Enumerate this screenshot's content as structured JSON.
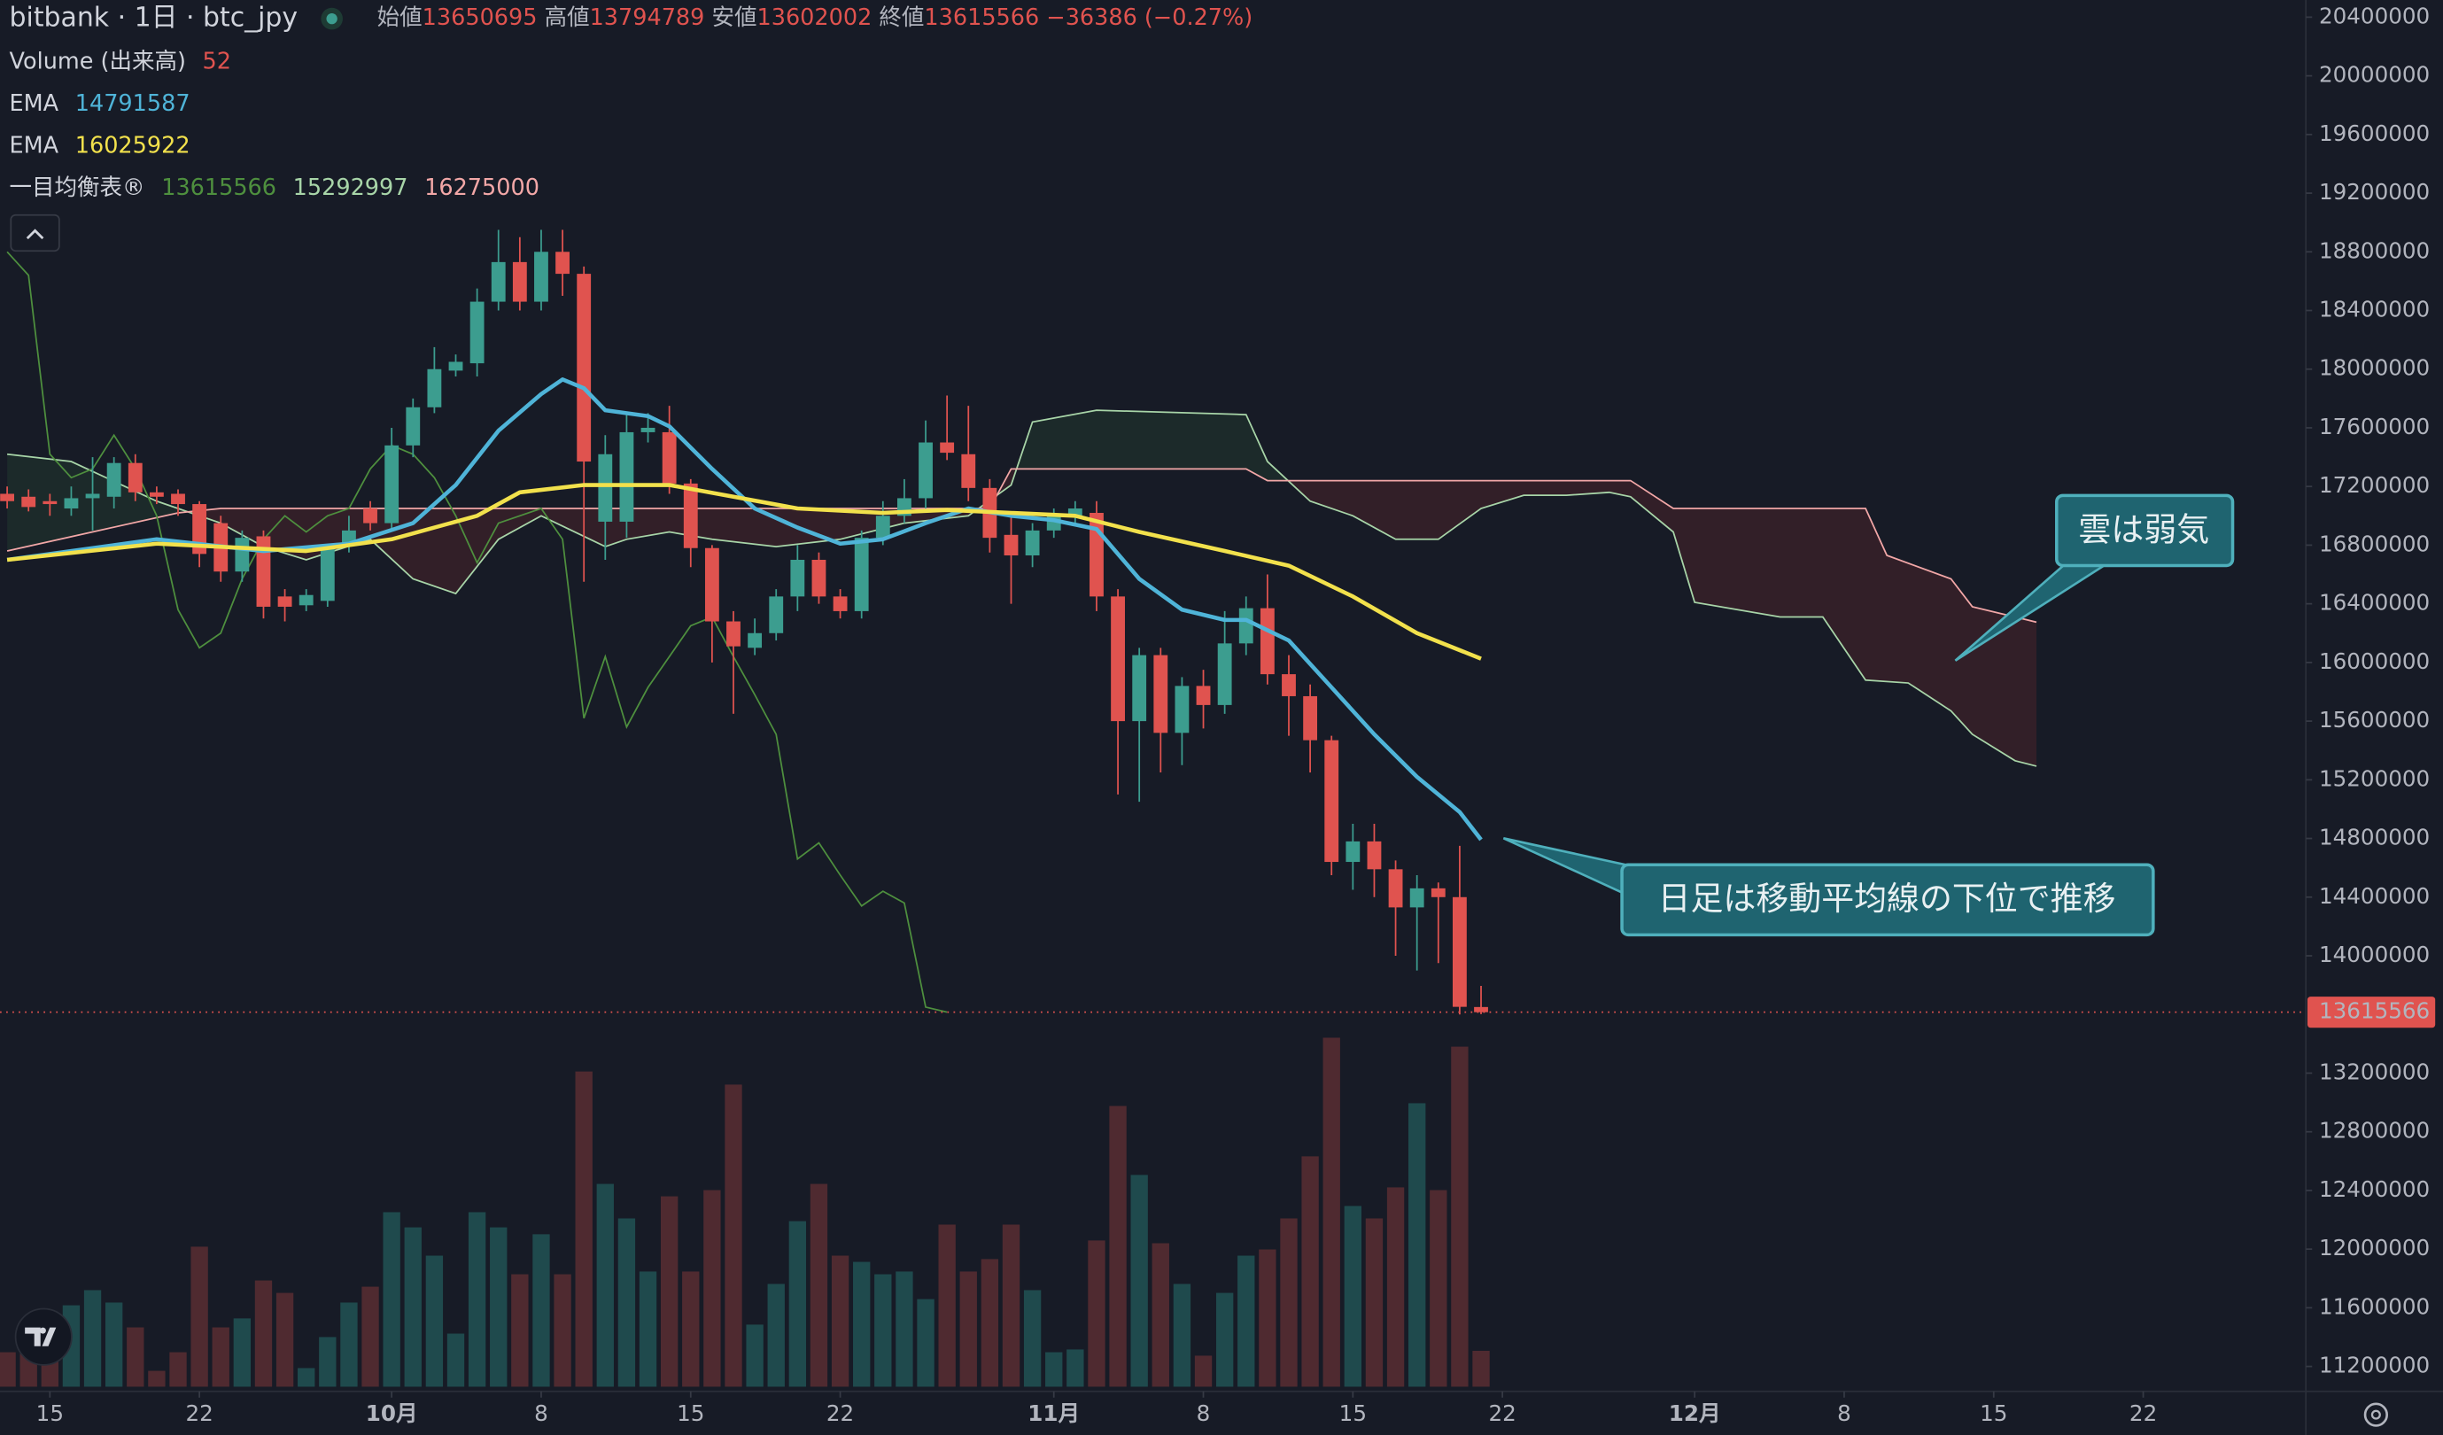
{
  "chart_data": {
    "type": "candlestick",
    "title": "bitbank · 1日 · btc_jpy",
    "ohlc_labels": [
      "始値",
      "高値",
      "安値",
      "終値"
    ],
    "change_label": "−36386 (−0.27%)",
    "up_color": "#3c9d8f",
    "down_color": "#e0534f",
    "x": [
      "09-13",
      "09-14",
      "09-15",
      "09-16",
      "09-17",
      "09-18",
      "09-19",
      "09-20",
      "09-21",
      "09-22",
      "09-23",
      "09-24",
      "09-25",
      "09-26",
      "09-27",
      "09-28",
      "09-29",
      "09-30",
      "10-01",
      "10-02",
      "10-03",
      "10-04",
      "10-05",
      "10-06",
      "10-07",
      "10-08",
      "10-09",
      "10-10",
      "10-11",
      "10-12",
      "10-13",
      "10-14",
      "10-15",
      "10-16",
      "10-17",
      "10-18",
      "10-19",
      "10-20",
      "10-21",
      "10-22",
      "10-23",
      "10-24",
      "10-25",
      "10-26",
      "10-27",
      "10-28",
      "10-29",
      "10-30",
      "10-31",
      "11-01",
      "11-02",
      "11-03",
      "11-04",
      "11-05",
      "11-06",
      "11-07",
      "11-08",
      "11-09",
      "11-10",
      "11-11",
      "11-12",
      "11-13",
      "11-14",
      "11-15",
      "11-16",
      "11-17",
      "11-18",
      "11-19",
      "11-20",
      "11-21"
    ],
    "open": [
      17150000,
      17130000,
      17100000,
      17050000,
      17120000,
      17130000,
      17360000,
      17160000,
      17150000,
      17080000,
      16950000,
      16620000,
      16860000,
      16450000,
      16390000,
      16420000,
      16800000,
      17050000,
      16950000,
      17480000,
      17740000,
      17990000,
      18040000,
      18460000,
      18730000,
      18460000,
      18800000,
      18650000,
      16960000,
      16960000,
      17570000,
      17570000,
      17220000,
      16780000,
      16280000,
      16100000,
      16200000,
      16450000,
      16700000,
      16450000,
      16350000,
      16850000,
      17000000,
      17120000,
      17500000,
      17420000,
      17190000,
      16870000,
      16730000,
      16900000,
      17000000,
      17020000,
      16450000,
      15600000,
      16050000,
      15520000,
      15840000,
      15710000,
      16130000,
      16370000,
      15920000,
      15770000,
      15470000,
      14640000,
      14780000,
      14590000,
      14330000,
      14460000,
      14400000,
      13650695
    ],
    "high": [
      17200000,
      17180000,
      17150000,
      17200000,
      17400000,
      17400000,
      17420000,
      17200000,
      17180000,
      17100000,
      17000000,
      16900000,
      16900000,
      16500000,
      16500000,
      16800000,
      17000000,
      17100000,
      17600000,
      17800000,
      18150000,
      18100000,
      18550000,
      18950000,
      18900000,
      18950000,
      18950000,
      18700000,
      17550000,
      17700000,
      17700000,
      17750000,
      17250000,
      16800000,
      16350000,
      16300000,
      16500000,
      16800000,
      16750000,
      16500000,
      16900000,
      17100000,
      17250000,
      17650000,
      17820000,
      17750000,
      17250000,
      17000000,
      16950000,
      17050000,
      17100000,
      17100000,
      16500000,
      16100000,
      16100000,
      15900000,
      15950000,
      16350000,
      16450000,
      16600000,
      16050000,
      15850000,
      15500000,
      14900000,
      14900000,
      14650000,
      14550000,
      14500000,
      14750000,
      13794789
    ],
    "low": [
      17050000,
      17030000,
      17000000,
      17000000,
      16900000,
      17050000,
      17100000,
      17080000,
      17000000,
      16650000,
      16550000,
      16550000,
      16300000,
      16280000,
      16350000,
      16380000,
      16750000,
      16900000,
      16900000,
      17400000,
      17700000,
      17950000,
      17950000,
      18400000,
      18400000,
      18400000,
      18500000,
      16550000,
      16700000,
      16850000,
      17500000,
      17150000,
      16650000,
      16000000,
      15650000,
      16050000,
      16150000,
      16350000,
      16400000,
      16300000,
      16300000,
      16800000,
      16950000,
      17050000,
      17380000,
      17100000,
      16750000,
      16400000,
      16650000,
      16850000,
      16950000,
      16350000,
      15100000,
      15050000,
      15250000,
      15300000,
      15550000,
      15650000,
      16050000,
      15850000,
      15500000,
      15250000,
      14550000,
      14450000,
      14400000,
      14000000,
      13900000,
      13950000,
      13600000,
      13602002
    ],
    "close": [
      17100000,
      17060000,
      17080000,
      17120000,
      17150000,
      17360000,
      17160000,
      17130000,
      17080000,
      16740000,
      16620000,
      16850000,
      16380000,
      16380000,
      16460000,
      16780000,
      16900000,
      16950000,
      17480000,
      17740000,
      18000000,
      18050000,
      18460000,
      18730000,
      18460000,
      18800000,
      18650000,
      17370000,
      17420000,
      17570000,
      17600000,
      17220000,
      16780000,
      16280000,
      16110000,
      16200000,
      16450000,
      16700000,
      16450000,
      16350000,
      16850000,
      17000000,
      17120000,
      17500000,
      17430000,
      17190000,
      16850000,
      16730000,
      16900000,
      17000000,
      17050000,
      16450000,
      15600000,
      16050000,
      15520000,
      15840000,
      15710000,
      16130000,
      16370000,
      15920000,
      15770000,
      15470000,
      14640000,
      14780000,
      14590000,
      14330000,
      14460000,
      14400000,
      13651952,
      13615566
    ],
    "ylim": [
      11030000,
      20517000
    ],
    "yticks": [
      20400000,
      20000000,
      19600000,
      19200000,
      18800000,
      18400000,
      18000000,
      17600000,
      17200000,
      16800000,
      16400000,
      16000000,
      15600000,
      15200000,
      14800000,
      14400000,
      14000000,
      13200000,
      12800000,
      12400000,
      12000000,
      11600000,
      11200000
    ],
    "xticks": [
      {
        "value": "09-15",
        "label": "15"
      },
      {
        "value": "09-22",
        "label": "22"
      },
      {
        "value": "10-01",
        "label": "10月"
      },
      {
        "value": "10-08",
        "label": "8"
      },
      {
        "value": "10-15",
        "label": "15"
      },
      {
        "value": "10-22",
        "label": "22"
      },
      {
        "value": "11-01",
        "label": "11月"
      },
      {
        "value": "11-08",
        "label": "8"
      },
      {
        "value": "11-15",
        "label": "15"
      },
      {
        "value": "11-22",
        "label": "22"
      },
      {
        "value": "12-01",
        "label": "12月"
      },
      {
        "value": "12-08",
        "label": "8"
      },
      {
        "value": "12-15",
        "label": "15"
      },
      {
        "value": "12-22",
        "label": "22"
      }
    ],
    "volume": {
      "name": "Volume (出来高)",
      "up_color": "#1f4a4d",
      "down_color": "#4f2a30",
      "values": [
        50,
        54,
        72,
        118,
        140,
        122,
        86,
        23,
        50,
        203,
        86,
        99,
        154,
        136,
        27,
        72,
        122,
        145,
        253,
        231,
        190,
        77,
        253,
        231,
        163,
        221,
        163,
        457,
        294,
        244,
        167,
        276,
        167,
        285,
        438,
        90,
        149,
        240,
        294,
        190,
        181,
        163,
        167,
        127,
        235,
        167,
        185,
        235,
        140,
        50,
        54,
        212,
        407,
        307,
        208,
        149,
        45,
        136,
        190,
        199,
        244,
        334,
        506,
        262,
        244,
        289,
        411,
        285,
        493,
        52
      ]
    },
    "lines": [
      {
        "name": "EMA",
        "color": "#4fb4d8",
        "x": [
          "09-13",
          "09-20",
          "09-25",
          "09-29",
          "10-02",
          "10-04",
          "10-06",
          "10-08",
          "10-09",
          "10-10",
          "10-11",
          "10-13",
          "10-14",
          "10-16",
          "10-18",
          "10-20",
          "10-22",
          "10-24",
          "10-26",
          "10-28",
          "10-30",
          "11-01",
          "11-03",
          "11-05",
          "11-07",
          "11-09",
          "11-10",
          "11-12",
          "11-14",
          "11-16",
          "11-18",
          "11-20",
          "11-21"
        ],
        "values": [
          16700000,
          16840000,
          16760000,
          16810000,
          16950000,
          17210000,
          17580000,
          17830000,
          17930000,
          17870000,
          17720000,
          17680000,
          17610000,
          17320000,
          17050000,
          16920000,
          16810000,
          16840000,
          16950000,
          17050000,
          17000000,
          16970000,
          16910000,
          16570000,
          16360000,
          16290000,
          16290000,
          16150000,
          15830000,
          15510000,
          15220000,
          14980000,
          14791587
        ]
      },
      {
        "name": "EMA",
        "color": "#f2e14c",
        "x": [
          "09-13",
          "09-20",
          "09-27",
          "10-01",
          "10-05",
          "10-07",
          "10-10",
          "10-14",
          "10-17",
          "10-20",
          "10-24",
          "10-27",
          "10-30",
          "11-02",
          "11-05",
          "11-09",
          "11-12",
          "11-15",
          "11-18",
          "11-21"
        ],
        "values": [
          16700000,
          16810000,
          16760000,
          16840000,
          17000000,
          17160000,
          17210000,
          17210000,
          17130000,
          17050000,
          17020000,
          17040000,
          17020000,
          17000000,
          16890000,
          16760000,
          16660000,
          16450000,
          16200000,
          16025922
        ]
      }
    ],
    "ichimoku": {
      "name": "一目均衡表®",
      "cloud_up_color": "rgba(67,160,71,0.12)",
      "cloud_down_color": "rgba(244,67,54,0.12)",
      "lagging": {
        "color": "#4e8f3e",
        "x": [
          "09-13",
          "09-14",
          "09-15",
          "09-16",
          "09-17",
          "09-18",
          "09-19",
          "09-20",
          "09-21",
          "09-22",
          "09-23",
          "09-24",
          "09-25",
          "09-26",
          "09-27",
          "09-28",
          "09-29",
          "09-30",
          "10-01",
          "10-02",
          "10-03",
          "10-04",
          "10-05",
          "10-06",
          "10-07",
          "10-08",
          "10-09",
          "10-10",
          "10-11",
          "10-12",
          "10-13",
          "10-14",
          "10-15",
          "10-16",
          "10-17",
          "10-18",
          "10-19",
          "10-20",
          "10-21",
          "10-22",
          "10-23",
          "10-24",
          "10-25",
          "10-26",
          "10-27"
        ],
        "values": [
          18800000,
          18640000,
          17420000,
          17260000,
          17320000,
          17550000,
          17320000,
          17000000,
          16360000,
          16100000,
          16200000,
          16570000,
          16840000,
          17000000,
          16890000,
          17000000,
          17050000,
          17320000,
          17480000,
          17420000,
          17260000,
          17000000,
          16680000,
          16950000,
          17000000,
          17050000,
          16840000,
          15620000,
          16040000,
          15560000,
          15830000,
          16040000,
          16250000,
          16310000,
          16040000,
          15780000,
          15510000,
          14660000,
          14770000,
          14550000,
          14340000,
          14440000,
          14360000,
          13650000,
          13615566
        ]
      },
      "span_a": {
        "color": "#a8d5a8",
        "x": [
          "09-13",
          "09-16",
          "09-20",
          "09-23",
          "09-25",
          "09-27",
          "09-30",
          "10-02",
          "10-04",
          "10-06",
          "10-08",
          "10-11",
          "10-12",
          "10-14",
          "10-16",
          "10-19",
          "10-22",
          "10-25",
          "10-28",
          "10-30",
          "10-31",
          "11-03",
          "11-10",
          "11-11",
          "11-13",
          "11-15",
          "11-17",
          "11-19",
          "11-21",
          "11-23",
          "11-25",
          "11-27",
          "11-28",
          "11-30",
          "12-01",
          "12-05",
          "12-07",
          "12-09",
          "12-11",
          "12-13",
          "12-14",
          "12-16",
          "12-17"
        ],
        "values": [
          17420000,
          17370000,
          17100000,
          16950000,
          16790000,
          16700000,
          16840000,
          16570000,
          16470000,
          16840000,
          17000000,
          16790000,
          16840000,
          16890000,
          16840000,
          16790000,
          16840000,
          16950000,
          17000000,
          17210000,
          17640000,
          17720000,
          17690000,
          17370000,
          17100000,
          17000000,
          16840000,
          16840000,
          17050000,
          17140000,
          17140000,
          17160000,
          17130000,
          16890000,
          16410000,
          16310000,
          16310000,
          15880000,
          15860000,
          15670000,
          15510000,
          15330000,
          15292997
        ]
      },
      "span_b": {
        "color": "#f2a7a7",
        "x": [
          "09-13",
          "09-17",
          "09-21",
          "09-23",
          "10-29",
          "10-30",
          "11-10",
          "11-11",
          "11-28",
          "11-30",
          "12-09",
          "12-10",
          "12-13",
          "12-14",
          "12-17"
        ],
        "values": [
          16760000,
          16890000,
          17020000,
          17050000,
          17050000,
          17320000,
          17320000,
          17240000,
          17240000,
          17050000,
          17050000,
          16730000,
          16570000,
          16380000,
          16275000
        ]
      }
    },
    "annotations": [
      "雲は弱気",
      "日足は移動平均線の下位で推移"
    ]
  }
}
